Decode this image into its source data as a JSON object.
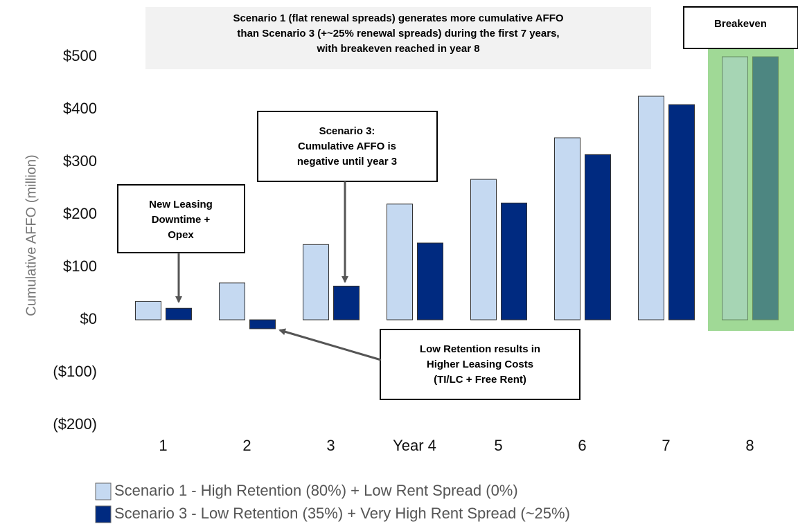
{
  "chart_data": {
    "type": "bar",
    "title": [
      "Scenario 1 (flat renewal spreads) generates more cumulative AFFO",
      "than Scenario 3 (+~25% renewal spreads) during the first 7 years,",
      "with breakeven reached in year 8"
    ],
    "y_label": "Cumulative AFFO (million)",
    "categories": [
      "1",
      "2",
      "3",
      "Year 4",
      "5",
      "6",
      "7",
      "8"
    ],
    "series": [
      {
        "name": "Scenario 1 - High Retention (80%) + Low Rent Spread (0%)",
        "color": "#c5d9f1",
        "values": [
          35,
          70,
          143,
          220,
          267,
          346,
          425,
          500
        ]
      },
      {
        "name": "Scenario 3 - Low Retention (35%) + Very High Rent Spread (~25%)",
        "color": "#002a80",
        "values": [
          22,
          -17,
          64,
          146,
          222,
          314,
          409,
          500
        ]
      }
    ],
    "ylim": [
      -200,
      500
    ],
    "yticks": [
      {
        "value": 500,
        "label": "$500"
      },
      {
        "value": 400,
        "label": "$400"
      },
      {
        "value": 300,
        "label": "$300"
      },
      {
        "value": 200,
        "label": "$200"
      },
      {
        "value": 100,
        "label": "$100"
      },
      {
        "value": 0,
        "label": "$0"
      },
      {
        "value": -100,
        "label": "($100)"
      },
      {
        "value": -200,
        "label": "($200)"
      }
    ],
    "annotations": [
      {
        "lines": [
          "Breakeven"
        ]
      },
      {
        "lines": [
          "New Leasing",
          "Downtime +",
          "Opex"
        ]
      },
      {
        "lines": [
          "Scenario 3:",
          "Cumulative AFFO is",
          "negative until year 3"
        ]
      },
      {
        "lines": [
          "Low Retention results in",
          "Higher Leasing Costs",
          "(TI/LC + Free Rent)"
        ]
      }
    ]
  }
}
